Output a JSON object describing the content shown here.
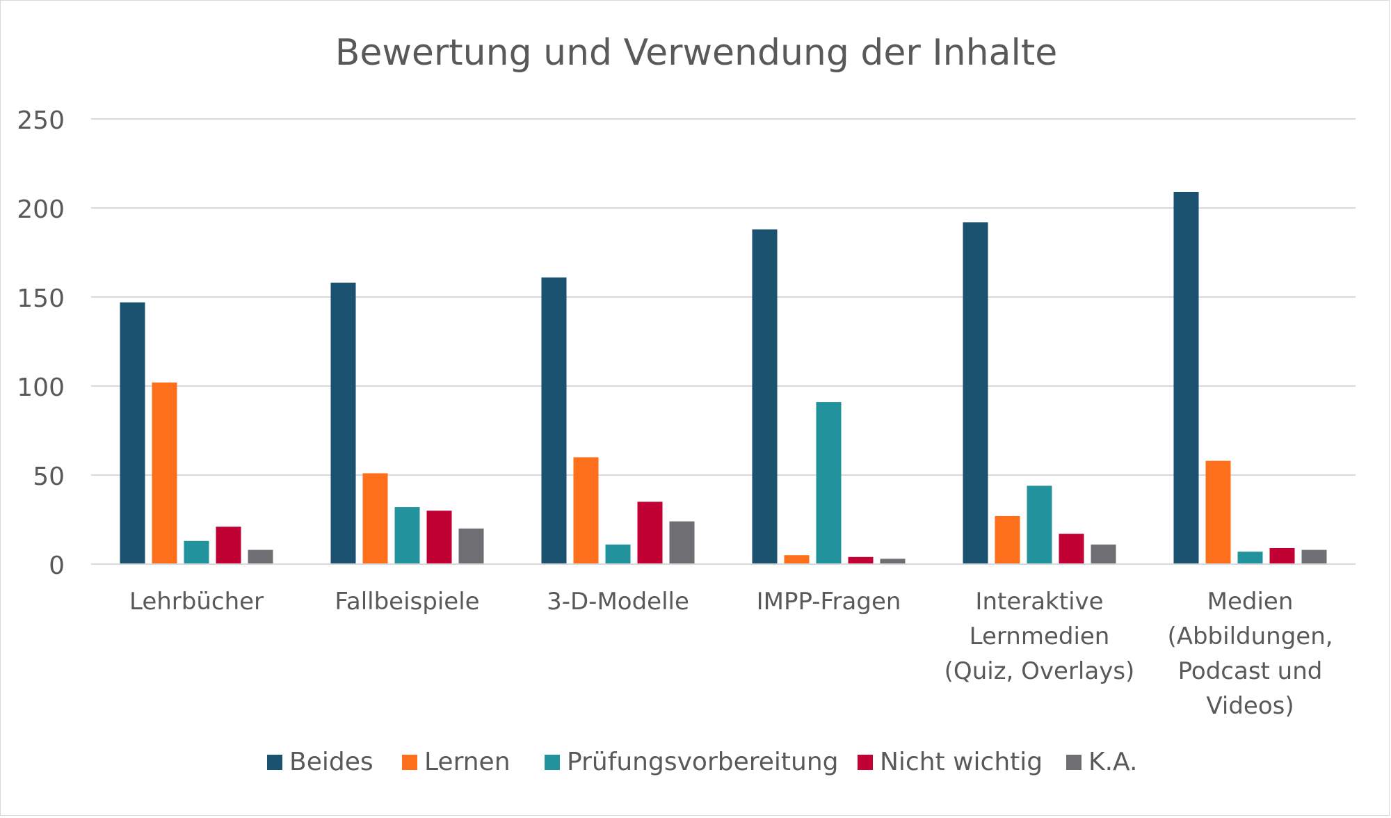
{
  "chart_data": {
    "type": "bar",
    "title": "Bewertung und Verwendung der Inhalte",
    "xlabel": "",
    "ylabel": "",
    "ylim": [
      0,
      250
    ],
    "yticks": [
      0,
      50,
      100,
      150,
      200,
      250
    ],
    "grid": true,
    "legend_position": "bottom",
    "categories": [
      [
        "Lehrbücher"
      ],
      [
        "Fallbeispiele"
      ],
      [
        "3-D-Modelle"
      ],
      [
        "IMPP-Fragen"
      ],
      [
        "Interaktive",
        "Lernmedien",
        "(Quiz, Overlays)"
      ],
      [
        "Medien",
        "(Abbildungen,",
        "Podcast und",
        "Videos)"
      ]
    ],
    "series": [
      {
        "name": "Beides",
        "color": "#1a5270",
        "values": [
          147,
          158,
          161,
          188,
          192,
          209
        ]
      },
      {
        "name": "Lernen",
        "color": "#fd6f1a",
        "values": [
          102,
          51,
          60,
          5,
          27,
          58
        ]
      },
      {
        "name": "Prüfungsvorbereitung",
        "color": "#22939c",
        "values": [
          13,
          32,
          11,
          91,
          44,
          7
        ]
      },
      {
        "name": "Nicht wichtig",
        "color": "#c10033",
        "values": [
          21,
          30,
          35,
          4,
          17,
          9
        ]
      },
      {
        "name": "K.A.",
        "color": "#6f6f73",
        "values": [
          8,
          20,
          24,
          3,
          11,
          8
        ]
      }
    ],
    "colors": {
      "axis_text": "#595959",
      "gridline": "#d9d9d9",
      "frame": "#d9d9d9"
    }
  }
}
